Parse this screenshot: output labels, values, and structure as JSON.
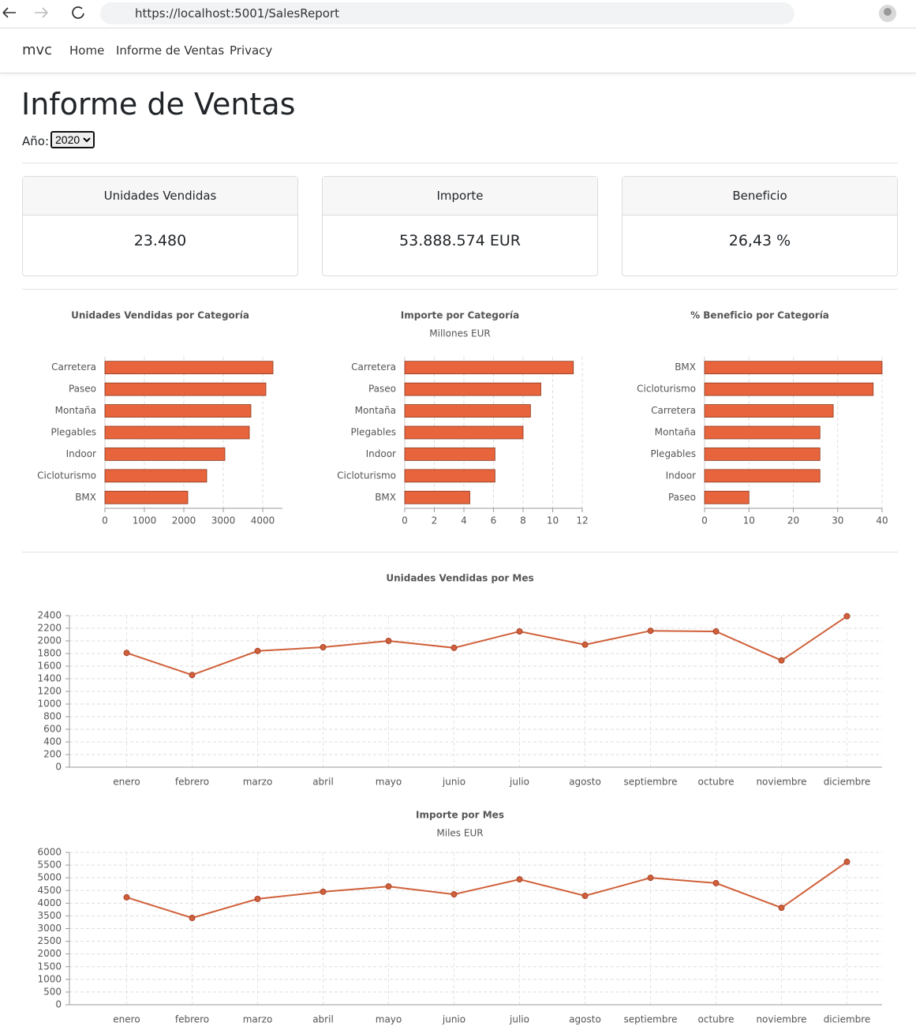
{
  "browser": {
    "url": "https://localhost:5001/SalesReport"
  },
  "nav": {
    "brand": "mvc",
    "links": [
      "Home",
      "Informe de Ventas",
      "Privacy"
    ]
  },
  "header": {
    "title": "Informe de Ventas",
    "year_label": "Año:",
    "year": "2020"
  },
  "cards": [
    {
      "title": "Unidades Vendidas",
      "value": "23.480"
    },
    {
      "title": "Importe",
      "value": "53.888.574 EUR"
    },
    {
      "title": "Beneficio",
      "value": "26,43 %"
    }
  ],
  "chart_data": [
    {
      "type": "bar",
      "orientation": "horizontal",
      "title": "Unidades Vendidas por Categoría",
      "categories": [
        "Carretera",
        "Paseo",
        "Montaña",
        "Plegables",
        "Indoor",
        "Cicloturismo",
        "BMX"
      ],
      "values": [
        4260,
        4080,
        3700,
        3660,
        3040,
        2580,
        2100
      ],
      "color": "#e8643c",
      "xlim": [
        0,
        4500
      ],
      "xticks": [
        0,
        1000,
        2000,
        3000,
        4000
      ],
      "grid": true
    },
    {
      "type": "bar",
      "orientation": "horizontal",
      "title": "Importe por Categoría",
      "subtitle": "Millones EUR",
      "categories": [
        "Carretera",
        "Paseo",
        "Montaña",
        "Plegables",
        "Indoor",
        "Cicloturismo",
        "BMX"
      ],
      "values": [
        11.4,
        9.2,
        8.5,
        8.0,
        6.1,
        6.1,
        4.4
      ],
      "color": "#e8643c",
      "xlim": [
        0,
        12
      ],
      "xticks": [
        0,
        2,
        4,
        6,
        8,
        10,
        12
      ],
      "grid": true
    },
    {
      "type": "bar",
      "orientation": "horizontal",
      "title": "% Beneficio por Categoría",
      "categories": [
        "BMX",
        "Cicloturismo",
        "Carretera",
        "Montaña",
        "Plegables",
        "Indoor",
        "Paseo"
      ],
      "values": [
        40,
        38,
        29,
        26,
        26,
        26,
        10
      ],
      "color": "#e8643c",
      "xlim": [
        0,
        40
      ],
      "xticks": [
        0,
        10,
        20,
        30,
        40
      ],
      "grid": true
    },
    {
      "type": "line",
      "title": "Unidades Vendidas por Mes",
      "categories": [
        "enero",
        "febrero",
        "marzo",
        "abril",
        "mayo",
        "junio",
        "julio",
        "agosto",
        "septiembre",
        "octubre",
        "noviembre",
        "diciembre"
      ],
      "values": [
        1810,
        1460,
        1840,
        1900,
        2000,
        1890,
        2150,
        1940,
        2160,
        2150,
        1690,
        2390
      ],
      "color": "#d0603a",
      "ylim": [
        0,
        2400
      ],
      "yticks": [
        0,
        200,
        400,
        600,
        800,
        1000,
        1200,
        1400,
        1600,
        1800,
        2000,
        2200,
        2400
      ],
      "grid": true
    },
    {
      "type": "line",
      "title": "Importe por Mes",
      "subtitle": "Miles EUR",
      "categories": [
        "enero",
        "febrero",
        "marzo",
        "abril",
        "mayo",
        "junio",
        "julio",
        "agosto",
        "septiembre",
        "octubre",
        "noviembre",
        "diciembre"
      ],
      "values": [
        4230,
        3420,
        4170,
        4450,
        4660,
        4350,
        4940,
        4290,
        5000,
        4790,
        3820,
        5630
      ],
      "color": "#d0603a",
      "ylim": [
        0,
        6000
      ],
      "yticks": [
        0,
        500,
        1000,
        1500,
        2000,
        2500,
        3000,
        3500,
        4000,
        4500,
        5000,
        5500,
        6000
      ],
      "grid": true
    }
  ]
}
